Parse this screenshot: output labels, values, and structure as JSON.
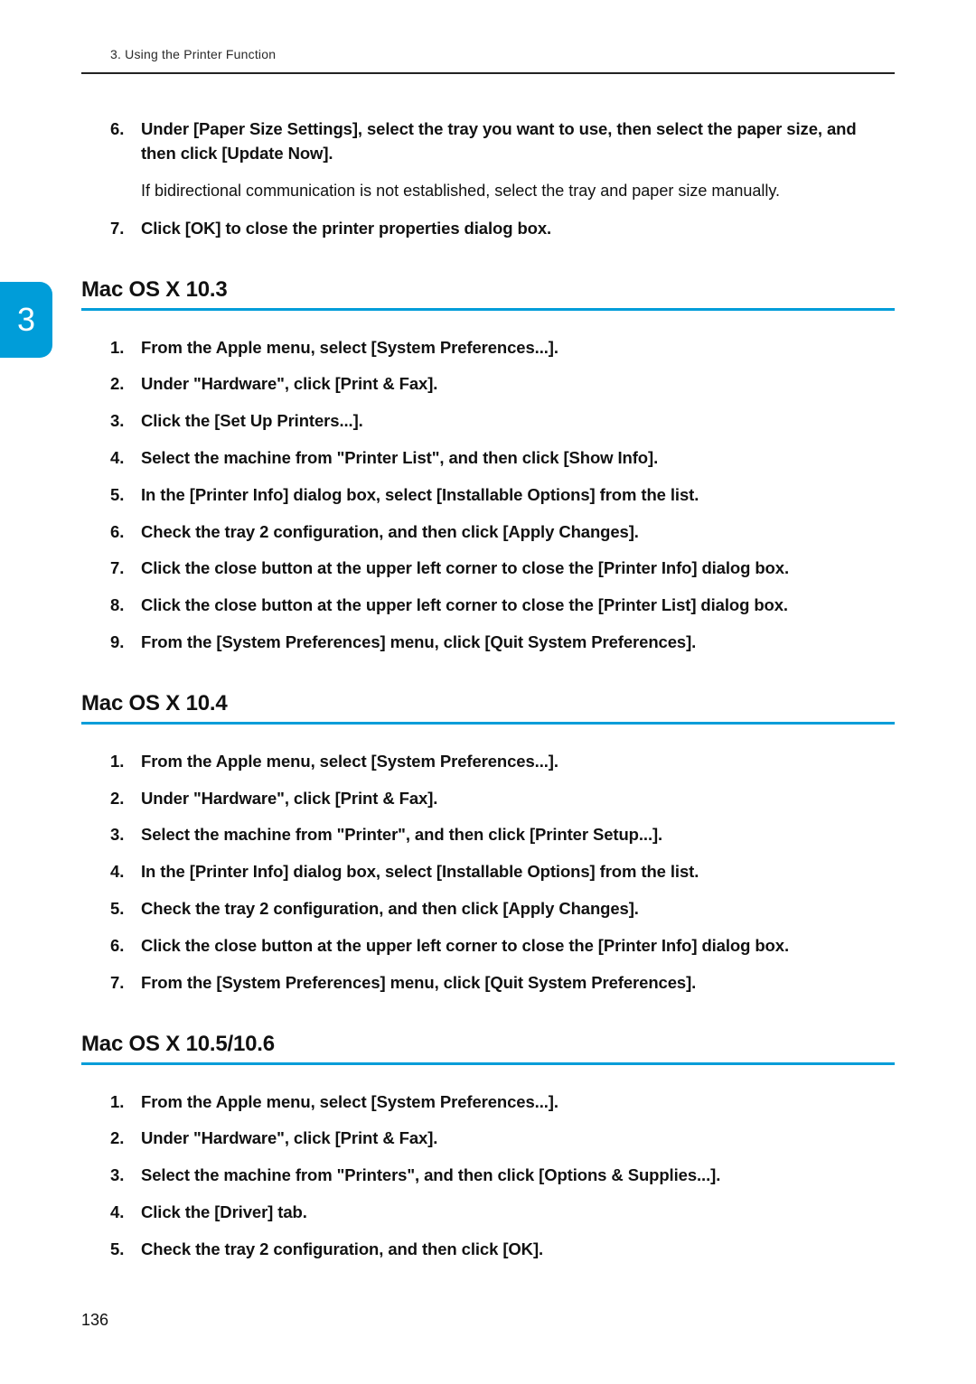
{
  "page": {
    "running_head": "3. Using the Printer Function",
    "tab_number": "3",
    "page_number": "136"
  },
  "intro_steps": [
    {
      "num": "6.",
      "text": "Under [Paper Size Settings], select the tray you want to use, then select the paper size, and then click [Update Now].",
      "note": "If bidirectional communication is not established, select the tray and paper size manually."
    },
    {
      "num": "7.",
      "text": "Click [OK] to close the printer properties dialog box."
    }
  ],
  "sections": [
    {
      "title": "Mac OS X 10.3",
      "steps": [
        {
          "num": "1.",
          "text": "From the Apple menu, select [System Preferences...]."
        },
        {
          "num": "2.",
          "text": "Under \"Hardware\", click [Print & Fax]."
        },
        {
          "num": "3.",
          "text": "Click the [Set Up Printers...]."
        },
        {
          "num": "4.",
          "text": "Select the machine from \"Printer List\", and then click [Show Info]."
        },
        {
          "num": "5.",
          "text": "In the [Printer Info] dialog box, select [Installable Options] from the list."
        },
        {
          "num": "6.",
          "text": "Check the tray 2 configuration, and then click [Apply Changes]."
        },
        {
          "num": "7.",
          "text": "Click the close button at the upper left corner to close the [Printer Info] dialog box."
        },
        {
          "num": "8.",
          "text": "Click the close button at the upper left corner to close the [Printer List] dialog box."
        },
        {
          "num": "9.",
          "text": "From the [System Preferences] menu, click [Quit System Preferences]."
        }
      ]
    },
    {
      "title": "Mac OS X 10.4",
      "steps": [
        {
          "num": "1.",
          "text": "From the Apple menu, select [System Preferences...]."
        },
        {
          "num": "2.",
          "text": "Under \"Hardware\", click [Print & Fax]."
        },
        {
          "num": "3.",
          "text": "Select the machine from \"Printer\", and then click [Printer Setup...]."
        },
        {
          "num": "4.",
          "text": "In the [Printer Info] dialog box, select [Installable Options] from the list."
        },
        {
          "num": "5.",
          "text": "Check the tray 2 configuration, and then click [Apply Changes]."
        },
        {
          "num": "6.",
          "text": "Click the close button at the upper left corner to close the [Printer Info] dialog box."
        },
        {
          "num": "7.",
          "text": "From the [System Preferences] menu, click [Quit System Preferences]."
        }
      ]
    },
    {
      "title": "Mac OS X 10.5/10.6",
      "steps": [
        {
          "num": "1.",
          "text": "From the Apple menu, select [System Preferences...]."
        },
        {
          "num": "2.",
          "text": "Under \"Hardware\", click [Print & Fax]."
        },
        {
          "num": "3.",
          "text": "Select the machine from \"Printers\", and then click [Options & Supplies...]."
        },
        {
          "num": "4.",
          "text": "Click the [Driver] tab."
        },
        {
          "num": "5.",
          "text": "Check the tray 2 configuration, and then click [OK]."
        }
      ]
    }
  ]
}
